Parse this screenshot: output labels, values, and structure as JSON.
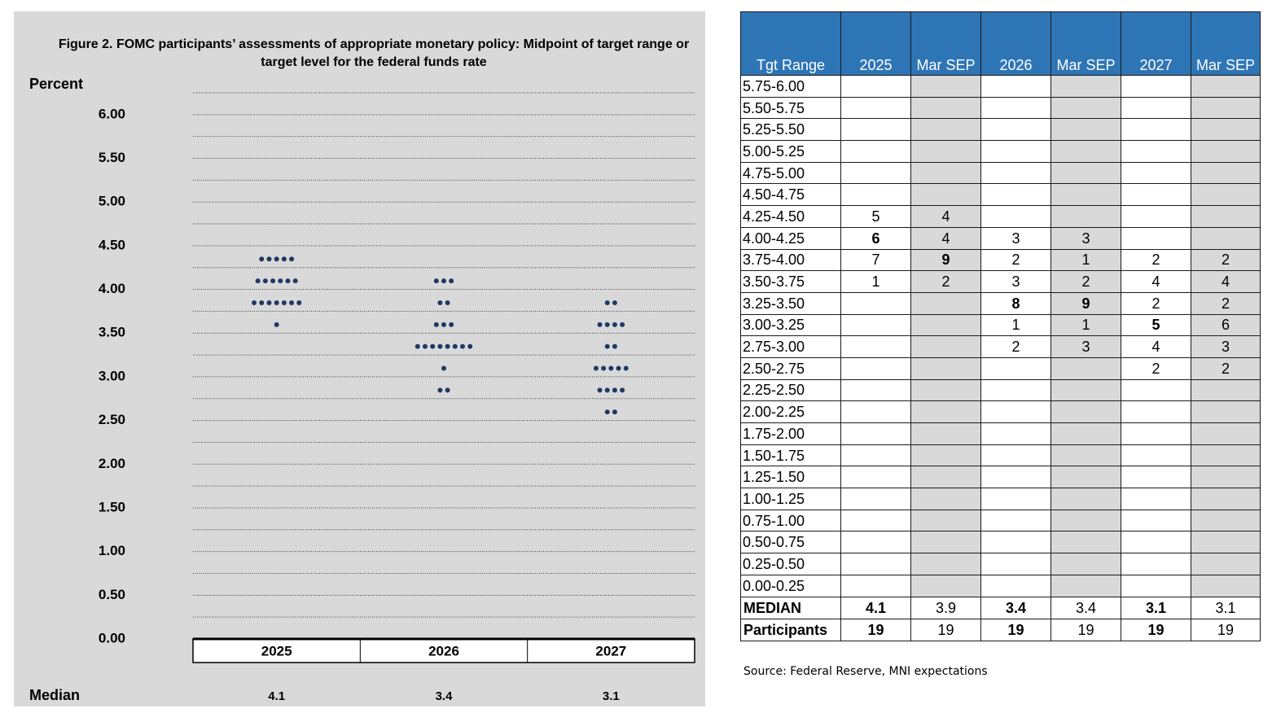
{
  "chart_data": {
    "type": "dot",
    "title": "Figure 2. FOMC participants’ assessments of appropriate monetary policy: Midpoint of target range or target level for the federal funds rate",
    "y_label": "Percent",
    "categories": [
      "2025",
      "2026",
      "2027"
    ],
    "dots": [
      {
        "y": [
          4.375,
          4.125,
          3.875,
          3.625
        ],
        "counts": [
          5,
          6,
          7,
          1
        ]
      },
      {
        "y": [
          4.125,
          3.875,
          3.625,
          3.375,
          3.125,
          2.875
        ],
        "counts": [
          3,
          2,
          3,
          8,
          1,
          2
        ]
      },
      {
        "y": [
          3.875,
          3.625,
          3.375,
          3.125,
          2.875,
          2.625
        ],
        "counts": [
          2,
          4,
          2,
          5,
          4,
          2
        ]
      }
    ],
    "color": "#1f3864",
    "ylim": [
      0,
      6.25
    ],
    "yticks": [
      {
        "value": 0,
        "label": "0.00"
      },
      {
        "value": 0.5,
        "label": "0.50"
      },
      {
        "value": 1,
        "label": "1.00"
      },
      {
        "value": 1.5,
        "label": "1.50"
      },
      {
        "value": 2,
        "label": "2.00"
      },
      {
        "value": 2.5,
        "label": "2.50"
      },
      {
        "value": 3,
        "label": "3.00"
      },
      {
        "value": 3.5,
        "label": "3.50"
      },
      {
        "value": 4,
        "label": "4.00"
      },
      {
        "value": 4.5,
        "label": "4.50"
      },
      {
        "value": 5,
        "label": "5.00"
      },
      {
        "value": 5.5,
        "label": "5.50"
      },
      {
        "value": 6,
        "label": "6.00"
      }
    ],
    "grid": true,
    "median_label": "Median",
    "medians": [
      4.1,
      3.4,
      3.1
    ]
  },
  "table": {
    "columns": [
      "Tgt Range",
      "2025",
      "Mar SEP",
      "2026",
      "Mar SEP",
      "2027",
      "Mar SEP"
    ],
    "rows": [
      [
        "5.75-6.00",
        null,
        null,
        null,
        null,
        null,
        null
      ],
      [
        "5.50-5.75",
        null,
        null,
        null,
        null,
        null,
        null
      ],
      [
        "5.25-5.50",
        null,
        null,
        null,
        null,
        null,
        null
      ],
      [
        "5.00-5.25",
        null,
        null,
        null,
        null,
        null,
        null
      ],
      [
        "4.75-5.00",
        null,
        null,
        null,
        null,
        null,
        null
      ],
      [
        "4.50-4.75",
        null,
        null,
        null,
        null,
        null,
        null
      ],
      [
        "4.25-4.50",
        5,
        4,
        null,
        null,
        null,
        null
      ],
      [
        "4.00-4.25",
        6,
        4,
        3,
        3,
        null,
        null
      ],
      [
        "3.75-4.00",
        7,
        9,
        2,
        1,
        2,
        2
      ],
      [
        "3.50-3.75",
        1,
        2,
        3,
        2,
        4,
        4
      ],
      [
        "3.25-3.50",
        null,
        null,
        8,
        9,
        2,
        2
      ],
      [
        "3.00-3.25",
        null,
        null,
        1,
        1,
        5,
        6
      ],
      [
        "2.75-3.00",
        null,
        null,
        2,
        3,
        4,
        3
      ],
      [
        "2.50-2.75",
        null,
        null,
        null,
        null,
        2,
        2
      ],
      [
        "2.25-2.50",
        null,
        null,
        null,
        null,
        null,
        null
      ],
      [
        "2.00-2.25",
        null,
        null,
        null,
        null,
        null,
        null
      ],
      [
        "1.75-2.00",
        null,
        null,
        null,
        null,
        null,
        null
      ],
      [
        "1.50-1.75",
        null,
        null,
        null,
        null,
        null,
        null
      ],
      [
        "1.25-1.50",
        null,
        null,
        null,
        null,
        null,
        null
      ],
      [
        "1.00-1.25",
        null,
        null,
        null,
        null,
        null,
        null
      ],
      [
        "0.75-1.00",
        null,
        null,
        null,
        null,
        null,
        null
      ],
      [
        "0.50-0.75",
        null,
        null,
        null,
        null,
        null,
        null
      ],
      [
        "0.25-0.50",
        null,
        null,
        null,
        null,
        null,
        null
      ],
      [
        "0.00-0.25",
        null,
        null,
        null,
        null,
        null,
        null
      ]
    ],
    "bold": [
      [
        7,
        1
      ],
      [
        8,
        2
      ],
      [
        10,
        3
      ],
      [
        10,
        4
      ],
      [
        11,
        5
      ]
    ],
    "summary": [
      [
        "MEDIAN",
        4.1,
        3.9,
        3.4,
        3.4,
        3.1,
        3.1
      ],
      [
        "Participants",
        19,
        19,
        19,
        19,
        19,
        19
      ]
    ]
  },
  "source": "Source: Federal Reserve, MNI expectations"
}
